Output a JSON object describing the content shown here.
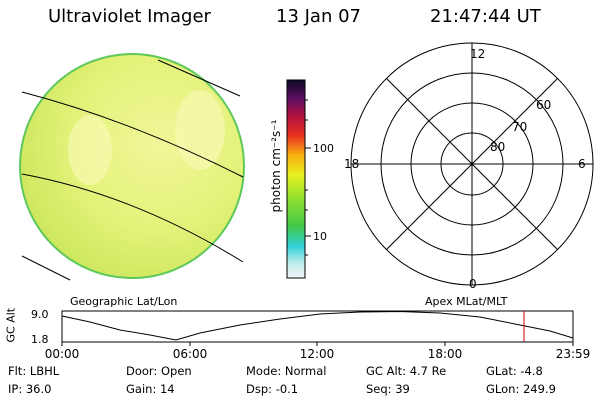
{
  "header": {
    "title": "Ultraviolet Imager",
    "date": "13 Jan 07",
    "time": "21:47:44 UT"
  },
  "colorbar": {
    "unit_label": "photon cm⁻²s⁻¹",
    "ticks": [
      "100",
      "10"
    ]
  },
  "polar_plot": {
    "mlt_labels": {
      "top": "12",
      "left": "18",
      "right": "6",
      "bottom": "0"
    },
    "lat_labels": [
      "60",
      "70",
      "80"
    ]
  },
  "map_titles": {
    "left": "Geographic Lat/Lon",
    "right": "Apex MLat/MLT"
  },
  "altitude_plot": {
    "ylabel": "GC Alt",
    "y_ticks": [
      "9.0",
      "1.8"
    ],
    "x_ticks": [
      "00:00",
      "06:00",
      "12:00",
      "18:00",
      "23:59"
    ],
    "marker_color": "#cc0000"
  },
  "status": {
    "flt": {
      "label": "Flt:",
      "value": "LBHL"
    },
    "door": {
      "label": "Door:",
      "value": "Open"
    },
    "mode": {
      "label": "Mode:",
      "value": "Normal"
    },
    "gcalt": {
      "label": "GC Alt:",
      "value": "4.7 Re"
    },
    "glat": {
      "label": "GLat:",
      "value": "-4.8"
    },
    "ip": {
      "label": "IP:",
      "value": "36.0"
    },
    "gain": {
      "label": "Gain:",
      "value": "14"
    },
    "dsp": {
      "label": "Dsp:",
      "value": "-0.1"
    },
    "seq": {
      "label": "Seq:",
      "value": "39"
    },
    "glon": {
      "label": "GLon:",
      "value": "249.9"
    }
  }
}
